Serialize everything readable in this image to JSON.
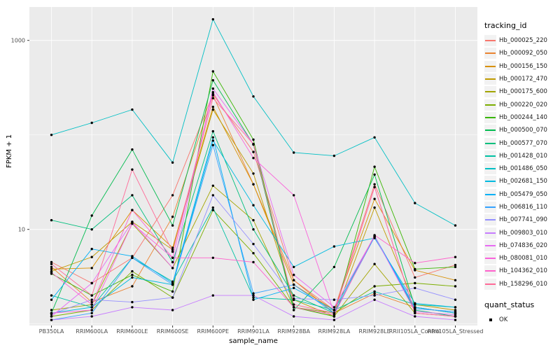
{
  "chart_data": {
    "type": "line",
    "title": "",
    "xlabel": "sample_name",
    "ylabel": "FPKM + 1",
    "y_scale": "log10",
    "y_tick_labels": [
      "10",
      "1000"
    ],
    "y_tick_values": [
      10,
      1000
    ],
    "y_minor_grid_values": [
      1,
      100
    ],
    "ylim": [
      0.97,
      2270
    ],
    "grid": true,
    "panel_bg": "#EBEBEB",
    "grid_color": "#FFFFFF",
    "point_color": "#000000",
    "legend_position": "right",
    "categories": [
      "PB350LA",
      "RRIM600LA",
      "RRIM600LE",
      "RRIM600SE",
      "RRIM600PE",
      "RRIM901LA",
      "RRIM928BA",
      "RRIM928LA",
      "RRIM928LE",
      "RRII105LA_Control",
      "RRII105LA_Stressed"
    ],
    "series": [
      {
        "name": "Hb_000025_220",
        "color": "#F8766D",
        "values": [
          4.5,
          2.7,
          5.0,
          23,
          270,
          66,
          2.9,
          1.4,
          30,
          3.1,
          4.2
        ]
      },
      {
        "name": "Hb_000092_050",
        "color": "#EA8331",
        "values": [
          4.0,
          1.7,
          2.5,
          13.6,
          262,
          30,
          2.9,
          1.3,
          2.1,
          1.5,
          1.3
        ]
      },
      {
        "name": "Hb_000156_150",
        "color": "#D89000",
        "values": [
          3.8,
          3.9,
          16,
          6.4,
          198,
          30,
          2.6,
          1.4,
          21,
          3.7,
          2.9
        ]
      },
      {
        "name": "Hb_000172_470",
        "color": "#C09B00",
        "values": [
          3.6,
          5.1,
          12,
          6.1,
          185,
          39,
          1.8,
          1.2,
          17,
          1.6,
          1.4
        ]
      },
      {
        "name": "Hb_000175_600",
        "color": "#A3A500",
        "values": [
          1.4,
          1.6,
          11.5,
          3.9,
          29,
          12.5,
          1.5,
          1.2,
          4.3,
          1.3,
          1.2
        ]
      },
      {
        "name": "Hb_000220_020",
        "color": "#7CAE00",
        "values": [
          1.2,
          1.4,
          3.6,
          1.9,
          16,
          5.6,
          1.5,
          1.3,
          2.5,
          2.7,
          2.5
        ]
      },
      {
        "name": "Hb_000244_140",
        "color": "#39B600",
        "values": [
          3.4,
          2.0,
          3.3,
          2.2,
          470,
          89,
          1.5,
          1.2,
          46,
          3.8,
          4.0
        ]
      },
      {
        "name": "Hb_000500_070",
        "color": "#00BB4E",
        "values": [
          1.3,
          14,
          70,
          11,
          378,
          79,
          1.4,
          4.0,
          38,
          1.5,
          1.3
        ]
      },
      {
        "name": "Hb_000577_070",
        "color": "#00BF7D",
        "values": [
          12.5,
          10,
          23,
          4.5,
          109,
          10,
          2.0,
          1.3,
          8.5,
          1.4,
          1.2
        ]
      },
      {
        "name": "Hb_001428_010",
        "color": "#00C1A3",
        "values": [
          2.0,
          1.5,
          5.0,
          2.8,
          17,
          1.9,
          1.8,
          1.4,
          2.2,
          1.6,
          1.5
        ]
      },
      {
        "name": "Hb_001486_050",
        "color": "#00BFC4",
        "values": [
          100,
          134,
          185,
          51,
          1670,
          255,
          65,
          60,
          94,
          19,
          11
        ]
      },
      {
        "name": "Hb_002681_150",
        "color": "#00BAE0",
        "values": [
          1.3,
          1.5,
          3.1,
          2.6,
          87,
          18,
          4.0,
          6.6,
          8.1,
          1.65,
          1.5
        ]
      },
      {
        "name": "Hb_005479_050",
        "color": "#00B0F6",
        "values": [
          1.8,
          6.2,
          5.2,
          2.7,
          94,
          1.8,
          2.4,
          1.4,
          8.5,
          1.5,
          1.3
        ]
      },
      {
        "name": "Hb_006816_110",
        "color": "#35A2FF",
        "values": [
          1.1,
          1.3,
          5.0,
          2.6,
          78,
          2.1,
          2.6,
          1.3,
          8.3,
          1.45,
          1.35
        ]
      },
      {
        "name": "Hb_007741_090",
        "color": "#9590FF",
        "values": [
          1.27,
          1.8,
          1.7,
          1.9,
          23,
          7.0,
          1.85,
          1.8,
          2.0,
          2.4,
          1.8
        ]
      },
      {
        "name": "Hb_009803_010",
        "color": "#C77CFF",
        "values": [
          1.1,
          1.2,
          1.5,
          1.4,
          2.0,
          2.0,
          1.2,
          1.1,
          1.8,
          1.2,
          1.1
        ]
      },
      {
        "name": "Hb_074836_020",
        "color": "#E76BF3",
        "values": [
          1.2,
          2.7,
          12,
          3.9,
          309,
          80,
          3.3,
          1.5,
          8.5,
          1.35,
          1.25
        ]
      },
      {
        "name": "Hb_080081_010",
        "color": "#FA62DB",
        "values": [
          1.3,
          1.4,
          11.5,
          5.0,
          283,
          57,
          23,
          1.3,
          28,
          1.3,
          1.2
        ]
      },
      {
        "name": "Hb_104362_010",
        "color": "#FF61CC",
        "values": [
          3.5,
          1.6,
          16,
          5.0,
          5.0,
          4.5,
          1.5,
          1.25,
          8.7,
          4.4,
          5.1
        ]
      },
      {
        "name": "Hb_158296_010",
        "color": "#FF6A98",
        "values": [
          4.3,
          2.0,
          43,
          5.8,
          245,
          80,
          1.6,
          1.3,
          28,
          1.3,
          1.2
        ]
      }
    ],
    "color_legend": {
      "title": "tracking_id"
    },
    "shape_legend": {
      "title": "quant_status",
      "items": [
        "OK"
      ]
    }
  }
}
